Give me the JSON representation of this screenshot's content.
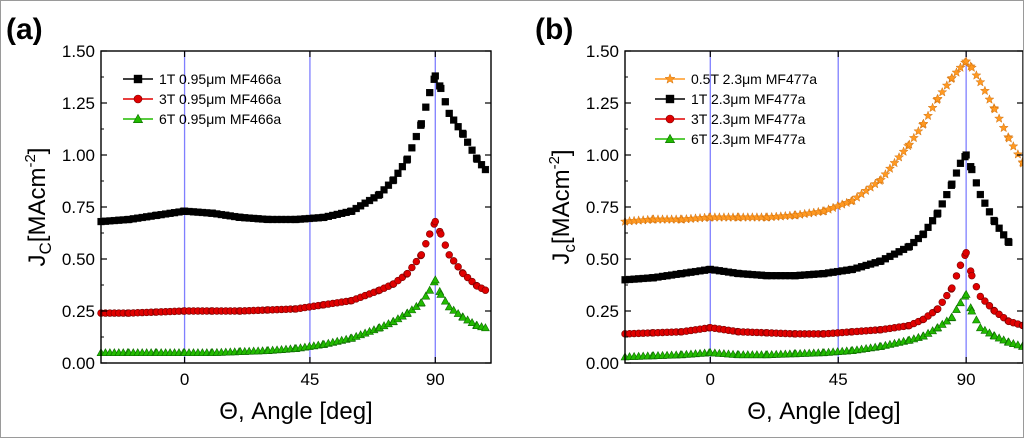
{
  "chart_data": [
    {
      "panel_label": "(a)",
      "type": "scatter",
      "xlabel": "Θ,  Angle [deg]",
      "ylabel": {
        "main": "J",
        "sub": "C",
        "unit": "[MAcm",
        "exp": "-2",
        "close": "]"
      },
      "xlim": [
        -30,
        110
      ],
      "ylim": [
        0,
        1.5
      ],
      "xticks": [
        0,
        45,
        90
      ],
      "xtick_labels": [
        "0",
        "45",
        "90"
      ],
      "yticks": [
        0,
        0.25,
        0.5,
        0.75,
        1.0,
        1.25,
        1.5
      ],
      "ytick_labels": [
        "0.00",
        "0.25",
        "0.50",
        "0.75",
        "1.00",
        "1.25",
        "1.50"
      ],
      "vlines": [
        0,
        45,
        90
      ],
      "legend_position": "top-left",
      "series": [
        {
          "name": "1T 0.95μm MF466a",
          "marker": "square",
          "color": "#000000",
          "x": [
            -30,
            -20,
            -10,
            0,
            10,
            20,
            30,
            40,
            50,
            60,
            70,
            75,
            80,
            85,
            88,
            90,
            92,
            95,
            100,
            105,
            108
          ],
          "y": [
            0.68,
            0.69,
            0.71,
            0.73,
            0.72,
            0.7,
            0.69,
            0.69,
            0.7,
            0.73,
            0.81,
            0.88,
            0.98,
            1.15,
            1.3,
            1.38,
            1.32,
            1.2,
            1.1,
            0.98,
            0.93
          ]
        },
        {
          "name": "3T 0.95μm MF466a",
          "marker": "circle",
          "color": "#e00000",
          "x": [
            -30,
            -20,
            -10,
            0,
            10,
            20,
            30,
            40,
            50,
            60,
            70,
            75,
            80,
            85,
            88,
            90,
            92,
            95,
            100,
            105,
            108
          ],
          "y": [
            0.24,
            0.24,
            0.245,
            0.25,
            0.25,
            0.25,
            0.255,
            0.26,
            0.28,
            0.3,
            0.35,
            0.38,
            0.43,
            0.52,
            0.62,
            0.68,
            0.62,
            0.52,
            0.43,
            0.37,
            0.35
          ]
        },
        {
          "name": "6T 0.95μm MF466a",
          "marker": "triangle",
          "color": "#22bb00",
          "x": [
            -30,
            -20,
            -10,
            0,
            10,
            20,
            30,
            40,
            50,
            60,
            70,
            75,
            80,
            85,
            88,
            90,
            92,
            95,
            100,
            105,
            108
          ],
          "y": [
            0.05,
            0.05,
            0.05,
            0.05,
            0.05,
            0.055,
            0.06,
            0.07,
            0.09,
            0.12,
            0.17,
            0.2,
            0.24,
            0.29,
            0.35,
            0.4,
            0.33,
            0.27,
            0.22,
            0.18,
            0.17
          ]
        }
      ]
    },
    {
      "panel_label": "(b)",
      "type": "scatter",
      "xlabel": "Θ,  Angle [deg]",
      "ylabel": {
        "main": "J",
        "sub": "c",
        "unit": "[MAcm",
        "exp": "-2",
        "close": "]"
      },
      "xlim": [
        -30,
        110
      ],
      "ylim": [
        0,
        1.5
      ],
      "xticks": [
        0,
        45,
        90
      ],
      "xtick_labels": [
        "0",
        "45",
        "90"
      ],
      "yticks": [
        0,
        0.25,
        0.5,
        0.75,
        1.0,
        1.25,
        1.5
      ],
      "ytick_labels": [
        "0.00",
        "0.25",
        "0.50",
        "0.75",
        "1.00",
        "1.25",
        "1.50"
      ],
      "vlines": [
        0,
        45,
        90
      ],
      "legend_position": "top-left",
      "series": [
        {
          "name": "0.5T 2.3μm MF477a",
          "marker": "star",
          "color": "#ff9922",
          "x": [
            -30,
            -20,
            -10,
            0,
            10,
            20,
            30,
            40,
            50,
            60,
            70,
            75,
            80,
            85,
            88,
            90,
            92,
            95,
            100,
            105,
            110
          ],
          "y": [
            0.68,
            0.69,
            0.69,
            0.7,
            0.7,
            0.7,
            0.71,
            0.73,
            0.78,
            0.88,
            1.05,
            1.15,
            1.27,
            1.37,
            1.42,
            1.45,
            1.42,
            1.35,
            1.22,
            1.08,
            0.96
          ]
        },
        {
          "name": "1T 2.3μm MF477a",
          "marker": "square",
          "color": "#000000",
          "x": [
            -30,
            -20,
            -10,
            0,
            10,
            20,
            30,
            40,
            50,
            60,
            70,
            75,
            80,
            85,
            88,
            90,
            92,
            95,
            100,
            105
          ],
          "y": [
            0.4,
            0.41,
            0.43,
            0.45,
            0.43,
            0.42,
            0.42,
            0.43,
            0.45,
            0.49,
            0.56,
            0.62,
            0.72,
            0.86,
            0.96,
            1.0,
            0.93,
            0.81,
            0.68,
            0.58
          ]
        },
        {
          "name": "3T 2.3μm MF477a",
          "marker": "circle",
          "color": "#e00000",
          "x": [
            -30,
            -20,
            -10,
            0,
            10,
            20,
            30,
            40,
            50,
            60,
            70,
            75,
            80,
            85,
            88,
            90,
            92,
            95,
            100,
            105,
            110
          ],
          "y": [
            0.14,
            0.145,
            0.15,
            0.17,
            0.15,
            0.145,
            0.14,
            0.14,
            0.15,
            0.16,
            0.18,
            0.21,
            0.26,
            0.36,
            0.47,
            0.53,
            0.42,
            0.32,
            0.25,
            0.2,
            0.18
          ]
        },
        {
          "name": "6T 2.3μm MF477a",
          "marker": "triangle",
          "color": "#22bb00",
          "x": [
            -30,
            -20,
            -10,
            0,
            10,
            20,
            30,
            40,
            50,
            60,
            70,
            75,
            80,
            85,
            88,
            90,
            92,
            95,
            100,
            105,
            110
          ],
          "y": [
            0.03,
            0.035,
            0.04,
            0.05,
            0.04,
            0.04,
            0.045,
            0.05,
            0.06,
            0.08,
            0.11,
            0.13,
            0.17,
            0.22,
            0.29,
            0.33,
            0.25,
            0.17,
            0.13,
            0.1,
            0.08
          ]
        }
      ]
    }
  ]
}
